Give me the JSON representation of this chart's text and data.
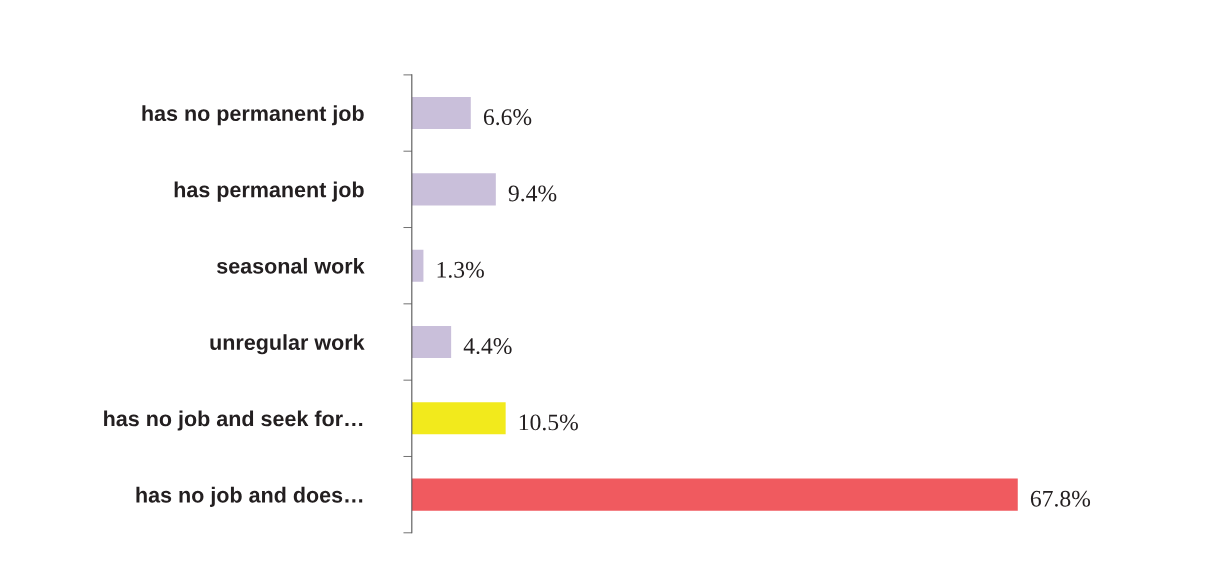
{
  "chart_data": {
    "type": "bar",
    "orientation": "horizontal",
    "categories": [
      "has no permanent job",
      "has permanent job",
      "seasonal work",
      "unregular work",
      "has no job and seek for…",
      "has no job and does…"
    ],
    "values": [
      6.6,
      9.4,
      1.3,
      4.4,
      10.5,
      67.8
    ],
    "colors": [
      "#c9bfda",
      "#c9bfda",
      "#c9bfda",
      "#c9bfda",
      "#f2ea1c",
      "#f05a5f"
    ],
    "value_labels": [
      "6.6%",
      "9.4%",
      "1.3%",
      "4.4%",
      "10.5%",
      "67.8%"
    ],
    "grid": false,
    "legend": false
  }
}
